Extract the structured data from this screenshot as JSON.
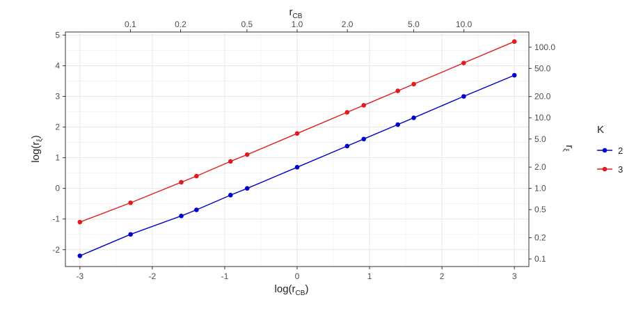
{
  "chart_data": {
    "type": "line",
    "xlabel": "log(r_CB)",
    "xlabel_main": "log(r",
    "xlabel_sub": "CB",
    "xlabel_end": ")",
    "ylabel": "log(r_ξ)",
    "ylabel_main": "log(r",
    "ylabel_sub": "ξ",
    "ylabel_end": ")",
    "top_axis_title": "r_CB",
    "top_axis_main": "r",
    "top_axis_sub": "CB",
    "right_axis_title": "r_ξ",
    "right_axis_main": "r",
    "right_axis_sub": "ξ",
    "xlim": [
      -3.2,
      3.2
    ],
    "ylim": [
      -2.55,
      5.1
    ],
    "x_ticks": [
      -3,
      -2,
      -1,
      0,
      1,
      2,
      3
    ],
    "y_ticks": [
      -2,
      -1,
      0,
      1,
      2,
      3,
      4,
      5
    ],
    "top_ticks": [
      "0.1",
      "0.2",
      "0.5",
      "1.0",
      "2.0",
      "5.0",
      "10.0"
    ],
    "right_ticks": [
      "0.1",
      "0.2",
      "0.5",
      "1.0",
      "2.0",
      "5.0",
      "10.0",
      "20.0",
      "50.0",
      "100.0"
    ],
    "grid": true,
    "legend_title": "K",
    "legend_position": "right",
    "series": [
      {
        "name": "2",
        "color": "#0000cc",
        "x": [
          -3,
          -2.3,
          -1.6,
          -1.39,
          -0.92,
          -0.69,
          0,
          0.69,
          0.92,
          1.39,
          1.61,
          2.3,
          3
        ],
        "y": [
          -2.2,
          -1.5,
          -0.9,
          -0.7,
          -0.22,
          0,
          0.69,
          1.38,
          1.61,
          2.08,
          2.3,
          3.0,
          3.69
        ]
      },
      {
        "name": "3",
        "color": "#e31a1c",
        "x": [
          -3,
          -2.3,
          -1.6,
          -1.39,
          -0.92,
          -0.69,
          0,
          0.69,
          0.92,
          1.39,
          1.61,
          2.3,
          3
        ],
        "y": [
          -1.1,
          -0.47,
          0.2,
          0.4,
          0.88,
          1.1,
          1.79,
          2.48,
          2.71,
          3.18,
          3.4,
          4.09,
          4.79
        ]
      }
    ]
  }
}
